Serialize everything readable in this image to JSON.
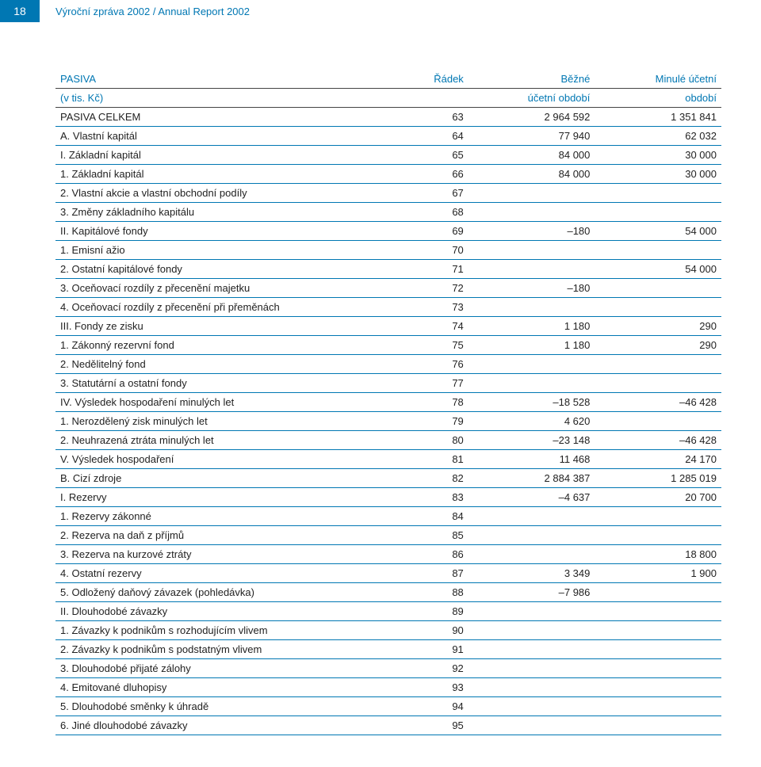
{
  "header": {
    "page_number": "18",
    "title": "Výroční zpráva 2002 / Annual Report 2002"
  },
  "table": {
    "columns": {
      "label1": "PASIVA",
      "label2": "(v tis. Kč)",
      "radek": "Řádek",
      "bezne1": "Běžné",
      "bezne2": "účetní období",
      "minule1": "Minulé účetní",
      "minule2": "období"
    },
    "rows": [
      {
        "label": "PASIVA CELKEM",
        "radek": "63",
        "bezne": "2 964 592",
        "minule": "1 351 841"
      },
      {
        "label": "A. Vlastní kapitál",
        "radek": "64",
        "bezne": "77 940",
        "minule": "62 032"
      },
      {
        "label": "I. Základní kapitál",
        "radek": "65",
        "bezne": "84 000",
        "minule": "30 000"
      },
      {
        "label": "1. Základní kapitál",
        "radek": "66",
        "bezne": "84 000",
        "minule": "30 000"
      },
      {
        "label": "2. Vlastní akcie a vlastní obchodní podíly",
        "radek": "67",
        "bezne": "",
        "minule": ""
      },
      {
        "label": "3. Změny základního kapitálu",
        "radek": "68",
        "bezne": "",
        "minule": ""
      },
      {
        "label": "II. Kapitálové fondy",
        "radek": "69",
        "bezne": "–180",
        "minule": "54 000"
      },
      {
        "label": "1. Emisní ažio",
        "radek": "70",
        "bezne": "",
        "minule": ""
      },
      {
        "label": "2. Ostatní kapitálové fondy",
        "radek": "71",
        "bezne": "",
        "minule": "54 000"
      },
      {
        "label": "3. Oceňovací rozdíly z přecenění majetku",
        "radek": "72",
        "bezne": "–180",
        "minule": ""
      },
      {
        "label": "4. Oceňovací rozdíly z přecenění při přeměnách",
        "radek": "73",
        "bezne": "",
        "minule": ""
      },
      {
        "label": "III. Fondy ze zisku",
        "radek": "74",
        "bezne": "1 180",
        "minule": "290"
      },
      {
        "label": "1. Zákonný rezervní fond",
        "radek": "75",
        "bezne": "1 180",
        "minule": "290"
      },
      {
        "label": "2. Nedělitelný fond",
        "radek": "76",
        "bezne": "",
        "minule": ""
      },
      {
        "label": "3. Statutární a ostatní fondy",
        "radek": "77",
        "bezne": "",
        "minule": ""
      },
      {
        "label": "IV. Výsledek hospodaření minulých let",
        "radek": "78",
        "bezne": "–18 528",
        "minule": "–46 428"
      },
      {
        "label": "1. Nerozdělený zisk minulých let",
        "radek": "79",
        "bezne": "4 620",
        "minule": ""
      },
      {
        "label": "2. Neuhrazená ztráta minulých let",
        "radek": "80",
        "bezne": "–23 148",
        "minule": "–46 428"
      },
      {
        "label": "V. Výsledek hospodaření",
        "radek": "81",
        "bezne": "11 468",
        "minule": "24 170"
      },
      {
        "label": "B. Cizí zdroje",
        "radek": "82",
        "bezne": "2 884 387",
        "minule": "1 285 019"
      },
      {
        "label": "I. Rezervy",
        "radek": "83",
        "bezne": "–4 637",
        "minule": "20 700"
      },
      {
        "label": "1. Rezervy zákonné",
        "radek": "84",
        "bezne": "",
        "minule": ""
      },
      {
        "label": "2. Rezerva na daň z příjmů",
        "radek": "85",
        "bezne": "",
        "minule": ""
      },
      {
        "label": "3. Rezerva na kurzové ztráty",
        "radek": "86",
        "bezne": "",
        "minule": "18 800"
      },
      {
        "label": "4. Ostatní rezervy",
        "radek": "87",
        "bezne": "3 349",
        "minule": "1 900"
      },
      {
        "label": "5. Odložený daňový závazek (pohledávka)",
        "radek": "88",
        "bezne": "–7 986",
        "minule": ""
      },
      {
        "label": "II. Dlouhodobé závazky",
        "radek": "89",
        "bezne": "",
        "minule": ""
      },
      {
        "label": "1. Závazky k podnikům s rozhodujícím vlivem",
        "radek": "90",
        "bezne": "",
        "minule": ""
      },
      {
        "label": "2. Závazky k podnikům s podstatným vlivem",
        "radek": "91",
        "bezne": "",
        "minule": ""
      },
      {
        "label": "3. Dlouhodobé přijaté zálohy",
        "radek": "92",
        "bezne": "",
        "minule": ""
      },
      {
        "label": "4. Emitované dluhopisy",
        "radek": "93",
        "bezne": "",
        "minule": ""
      },
      {
        "label": "5. Dlouhodobé směnky k úhradě",
        "radek": "94",
        "bezne": "",
        "minule": ""
      },
      {
        "label": "6. Jiné dlouhodobé závazky",
        "radek": "95",
        "bezne": "",
        "minule": ""
      }
    ]
  }
}
